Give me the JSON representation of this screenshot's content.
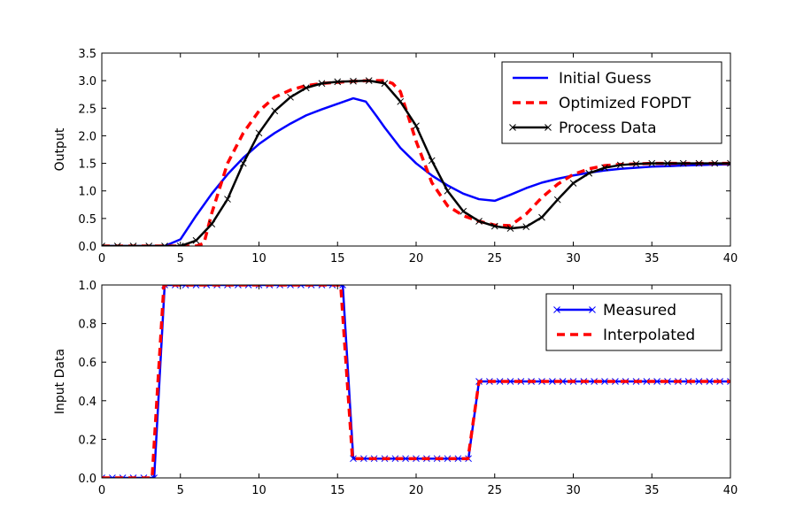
{
  "chart_data": [
    {
      "type": "line",
      "title": "",
      "xlabel": "",
      "ylabel": "Output",
      "xlim": [
        0,
        40
      ],
      "ylim": [
        0,
        3.5
      ],
      "xticks": [
        0,
        5,
        10,
        15,
        20,
        25,
        30,
        35,
        40
      ],
      "yticks": [
        0.0,
        0.5,
        1.0,
        1.5,
        2.0,
        2.5,
        3.0,
        3.5
      ],
      "xtick_labels": [
        "0",
        "5",
        "10",
        "15",
        "20",
        "25",
        "30",
        "35",
        "40"
      ],
      "ytick_labels": [
        "0.0",
        "0.5",
        "1.0",
        "1.5",
        "2.0",
        "2.5",
        "3.0",
        "3.5"
      ],
      "grid": false,
      "legend_position": "top-right",
      "series": [
        {
          "name": "Initial Guess",
          "color": "#0000ff",
          "style": "solid",
          "x": [
            0,
            1,
            2,
            3,
            4,
            5,
            6,
            7,
            8,
            9,
            10,
            11,
            12,
            13,
            14,
            15,
            16,
            16.8,
            17.5,
            18,
            19,
            20,
            21,
            22,
            23,
            24,
            25,
            26,
            27,
            28,
            29,
            30,
            31,
            32,
            33,
            34,
            35,
            36,
            37,
            38,
            39,
            40
          ],
          "y": [
            0,
            0,
            0,
            0,
            0,
            0.12,
            0.55,
            0.95,
            1.3,
            1.6,
            1.85,
            2.05,
            2.22,
            2.37,
            2.48,
            2.58,
            2.68,
            2.62,
            2.35,
            2.15,
            1.78,
            1.5,
            1.28,
            1.1,
            0.95,
            0.85,
            0.82,
            0.93,
            1.05,
            1.15,
            1.22,
            1.28,
            1.33,
            1.37,
            1.4,
            1.42,
            1.44,
            1.45,
            1.46,
            1.47,
            1.48,
            1.48
          ]
        },
        {
          "name": "Optimized FOPDT",
          "color": "#ff0000",
          "style": "dashed",
          "x": [
            0,
            1,
            2,
            3,
            4,
            5,
            6,
            6.5,
            7,
            8,
            9,
            10,
            11,
            12,
            13,
            14,
            15,
            16,
            17,
            18,
            18.5,
            19,
            20,
            21,
            22,
            23,
            24,
            25,
            26,
            27,
            28,
            29,
            30,
            31,
            32,
            33,
            34,
            35,
            36,
            37,
            38,
            39,
            40
          ],
          "y": [
            0,
            0,
            0,
            0,
            0,
            0,
            0,
            0.05,
            0.6,
            1.5,
            2.05,
            2.45,
            2.7,
            2.83,
            2.91,
            2.95,
            2.97,
            2.99,
            3.0,
            3.0,
            2.95,
            2.8,
            1.9,
            1.15,
            0.73,
            0.55,
            0.45,
            0.38,
            0.37,
            0.58,
            0.88,
            1.12,
            1.3,
            1.4,
            1.46,
            1.48,
            1.49,
            1.5,
            1.5,
            1.5,
            1.5,
            1.5,
            1.5
          ]
        },
        {
          "name": "Process Data",
          "color": "#000000",
          "style": "solid",
          "marker": "x",
          "x": [
            0,
            1,
            2,
            3,
            4,
            5,
            6,
            7,
            8,
            9,
            10,
            11,
            12,
            13,
            14,
            15,
            16,
            17,
            18,
            19,
            20,
            21,
            22,
            23,
            24,
            25,
            26,
            27,
            28,
            29,
            30,
            31,
            32,
            33,
            34,
            35,
            36,
            37,
            38,
            39,
            40
          ],
          "y": [
            0,
            0,
            0,
            0,
            0,
            0,
            0.1,
            0.4,
            0.85,
            1.5,
            2.05,
            2.45,
            2.7,
            2.87,
            2.95,
            2.98,
            2.99,
            3.0,
            2.95,
            2.62,
            2.18,
            1.55,
            1.0,
            0.63,
            0.45,
            0.36,
            0.32,
            0.35,
            0.52,
            0.84,
            1.14,
            1.32,
            1.42,
            1.47,
            1.49,
            1.5,
            1.5,
            1.5,
            1.5,
            1.5,
            1.5
          ]
        }
      ]
    },
    {
      "type": "line",
      "title": "",
      "xlabel": "",
      "ylabel": "Input Data",
      "xlim": [
        0,
        40
      ],
      "ylim": [
        0,
        1.0
      ],
      "xticks": [
        0,
        5,
        10,
        15,
        20,
        25,
        30,
        35,
        40
      ],
      "yticks": [
        0.0,
        0.2,
        0.4,
        0.6,
        0.8,
        1.0
      ],
      "xtick_labels": [
        "0",
        "5",
        "10",
        "15",
        "20",
        "25",
        "30",
        "35",
        "40"
      ],
      "ytick_labels": [
        "0.0",
        "0.2",
        "0.4",
        "0.6",
        "0.8",
        "1.0"
      ],
      "grid": false,
      "legend_position": "top-right",
      "series": [
        {
          "name": "Measured",
          "color": "#0000ff",
          "style": "solid",
          "marker": "x",
          "x": [
            0,
            0.67,
            1.33,
            2,
            2.67,
            3.33,
            4,
            4.67,
            5.33,
            6,
            6.67,
            7.33,
            8,
            8.67,
            9.33,
            10,
            10.67,
            11.33,
            12,
            12.67,
            13.33,
            14,
            14.67,
            15.33,
            16,
            16.67,
            17.33,
            18,
            18.67,
            19.33,
            20,
            20.67,
            21.33,
            22,
            22.67,
            23.33,
            24,
            24.67,
            25.33,
            26,
            26.67,
            27.33,
            28,
            28.67,
            29.33,
            30,
            30.67,
            31.33,
            32,
            32.67,
            33.33,
            34,
            34.67,
            35.33,
            36,
            36.67,
            37.33,
            38,
            38.67,
            39.33,
            40
          ],
          "y": [
            0,
            0,
            0,
            0,
            0,
            0,
            1,
            1,
            1,
            1,
            1,
            1,
            1,
            1,
            1,
            1,
            1,
            1,
            1,
            1,
            1,
            1,
            1,
            1,
            0.1,
            0.1,
            0.1,
            0.1,
            0.1,
            0.1,
            0.1,
            0.1,
            0.1,
            0.1,
            0.1,
            0.1,
            0.5,
            0.5,
            0.5,
            0.5,
            0.5,
            0.5,
            0.5,
            0.5,
            0.5,
            0.5,
            0.5,
            0.5,
            0.5,
            0.5,
            0.5,
            0.5,
            0.5,
            0.5,
            0.5,
            0.5,
            0.5,
            0.5,
            0.5,
            0.5,
            0.5
          ]
        },
        {
          "name": "Interpolated",
          "color": "#ff0000",
          "style": "dashed",
          "x": [
            0,
            3.2,
            3.95,
            15.2,
            15.95,
            23.3,
            24.0,
            40
          ],
          "y": [
            0,
            0,
            1,
            1,
            0.1,
            0.1,
            0.5,
            0.5
          ]
        }
      ]
    }
  ]
}
